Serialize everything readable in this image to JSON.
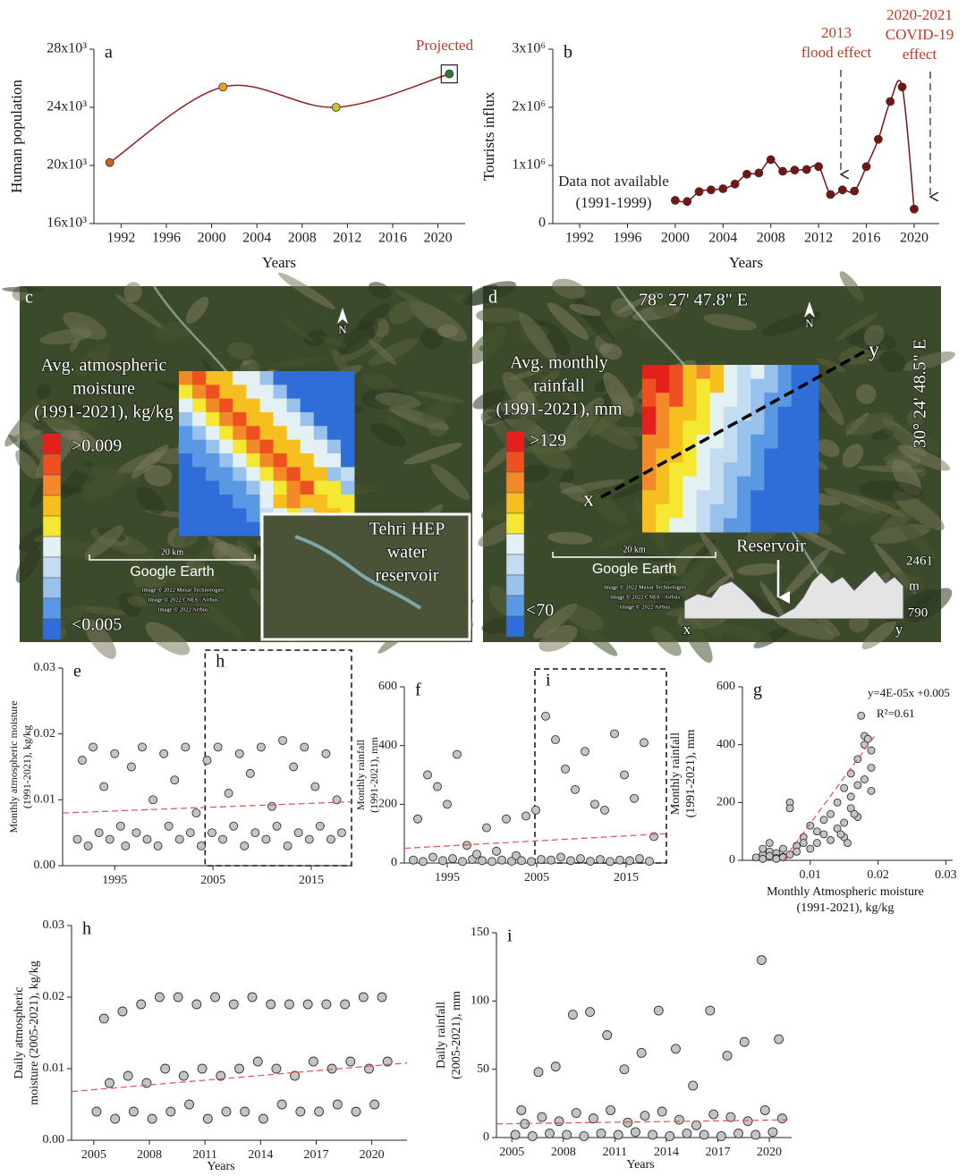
{
  "chart_data": [
    {
      "type": "line",
      "panel": "a",
      "ylabel": [
        "Human population"
      ],
      "xlabel": "Years",
      "smooth": true,
      "x": [
        1991,
        2001,
        2011,
        2021
      ],
      "series": [
        {
          "color": "#8b2323",
          "values": [
            20200,
            25400,
            24000,
            26300
          ],
          "point_colors": [
            "#c8641c",
            "#e8a21e",
            "#c6c72a",
            "#2e7d32"
          ]
        }
      ],
      "xlim": [
        1989.6,
        2022.4
      ],
      "ylim": [
        16000,
        28000
      ],
      "xticks": [
        1992,
        1996,
        2000,
        2004,
        2008,
        2012,
        2016,
        2020
      ],
      "yticks": [
        {
          "value": 16000,
          "label": "16x10³"
        },
        {
          "value": 20000,
          "label": "20x10³"
        },
        {
          "value": 24000,
          "label": "24x10³"
        },
        {
          "value": 28000,
          "label": "28x10³"
        }
      ],
      "annotations": [
        {
          "lines": [
            "Projected"
          ],
          "color": "#c0392b"
        }
      ]
    },
    {
      "type": "line",
      "panel": "b",
      "ylabel": [
        "Tourists influx"
      ],
      "xlabel": "Years",
      "smooth": true,
      "x": [
        2000,
        2001,
        2002,
        2003,
        2004,
        2005,
        2006,
        2007,
        2008,
        2009,
        2010,
        2011,
        2012,
        2013,
        2014,
        2015,
        2016,
        2017,
        2018,
        2019,
        2020
      ],
      "series": [
        {
          "color": "#7a1414",
          "values": [
            400000,
            380000,
            550000,
            580000,
            600000,
            680000,
            850000,
            870000,
            1100000,
            900000,
            920000,
            930000,
            980000,
            500000,
            580000,
            560000,
            980000,
            1450000,
            2100000,
            2350000,
            250000
          ]
        }
      ],
      "xlim": [
        1989.75,
        2022.1
      ],
      "ylim": [
        0,
        3000000
      ],
      "xticks": [
        1992,
        1996,
        2000,
        2004,
        2008,
        2012,
        2016,
        2020
      ],
      "yticks": [
        0,
        {
          "value": 1000000,
          "label": "1x10⁶"
        },
        {
          "value": 2000000,
          "label": "2x10⁶"
        },
        {
          "value": 3000000,
          "label": "3x10⁶"
        }
      ],
      "annotations": [
        {
          "lines": [
            "2013",
            "flood effect"
          ],
          "color": "#c0392b"
        },
        {
          "lines": [
            "2020-2021",
            "COVID-19",
            "effect"
          ],
          "color": "#c0392b"
        },
        {
          "lines": [
            "Data not available",
            "(1991-1999)"
          ],
          "color": "#222222"
        }
      ]
    },
    {
      "type": "scatter",
      "panel": "e",
      "ylabel": [
        "Monthly atmospheric moisture",
        "(1991-2021), kg/kg"
      ],
      "series": [
        {
          "color": "#c4c4c4",
          "x": [
            1991.2,
            1991.7,
            1992.3,
            1992.8,
            1993.4,
            1993.9,
            1994.5,
            1995.0,
            1995.6,
            1996.1,
            1996.7,
            1997.2,
            1997.8,
            1998.3,
            1998.9,
            1999.4,
            2000.0,
            2000.5,
            2001.1,
            2001.6,
            2002.2,
            2002.7,
            2003.3,
            2003.8,
            2004.4,
            2004.9,
            2005.5,
            2006.0,
            2006.6,
            2007.1,
            2007.7,
            2008.2,
            2008.8,
            2009.3,
            2009.9,
            2010.4,
            2011.0,
            2011.5,
            2012.1,
            2012.6,
            2013.2,
            2013.7,
            2014.3,
            2014.8,
            2015.4,
            2015.9,
            2016.5,
            2017.0,
            2017.6,
            2018.1
          ],
          "values": [
            0.004,
            0.016,
            0.003,
            0.018,
            0.005,
            0.012,
            0.004,
            0.017,
            0.006,
            0.003,
            0.015,
            0.005,
            0.018,
            0.004,
            0.01,
            0.003,
            0.017,
            0.006,
            0.013,
            0.004,
            0.018,
            0.005,
            0.008,
            0.003,
            0.016,
            0.005,
            0.018,
            0.004,
            0.011,
            0.006,
            0.017,
            0.003,
            0.014,
            0.005,
            0.018,
            0.004,
            0.009,
            0.006,
            0.019,
            0.003,
            0.015,
            0.005,
            0.018,
            0.004,
            0.012,
            0.006,
            0.017,
            0.004,
            0.01,
            0.005
          ]
        }
      ],
      "trendline": {
        "x": [
          1989.7,
          2019.1
        ],
        "values": [
          0.008,
          0.0097
        ],
        "color": "#e05050"
      },
      "highlight": {
        "label": "h",
        "range": [
          2004.2,
          2019.1
        ]
      },
      "xlim": [
        1989.7,
        2019.1
      ],
      "ylim": [
        0,
        0.03
      ],
      "xticks": [
        1995,
        2005,
        2015
      ],
      "yticks": [
        {
          "value": 0,
          "label": "0.00"
        },
        0.01,
        0.02,
        0.03
      ]
    },
    {
      "type": "scatter",
      "panel": "f",
      "ylabel": [
        "Monthly rainfall",
        "(1991-2021), mm"
      ],
      "series": [
        {
          "color": "#c4c4c4",
          "x": [
            1991.2,
            1991.7,
            1992.3,
            1992.8,
            1993.4,
            1993.9,
            1994.5,
            1995.0,
            1995.6,
            1996.1,
            1996.7,
            1997.2,
            1997.8,
            1998.3,
            1998.9,
            1999.4,
            2000.0,
            2000.5,
            2001.1,
            2001.6,
            2002.2,
            2002.7,
            2003.3,
            2003.8,
            2004.4,
            2004.9,
            2005.5,
            2006.0,
            2006.6,
            2007.1,
            2007.7,
            2008.2,
            2008.8,
            2009.3,
            2009.9,
            2010.4,
            2011.0,
            2011.5,
            2012.1,
            2012.6,
            2013.2,
            2013.7,
            2014.3,
            2014.8,
            2015.4,
            2015.9,
            2016.5,
            2017.0,
            2017.6,
            2018.1
          ],
          "values": [
            10,
            150,
            5,
            300,
            20,
            260,
            8,
            200,
            15,
            370,
            5,
            60,
            12,
            30,
            8,
            120,
            5,
            40,
            10,
            150,
            6,
            25,
            8,
            160,
            5,
            180,
            12,
            500,
            10,
            420,
            20,
            320,
            8,
            250,
            15,
            380,
            6,
            200,
            12,
            180,
            5,
            440,
            10,
            300,
            8,
            220,
            15,
            410,
            6,
            90
          ]
        }
      ],
      "trendline": {
        "x": [
          1990.2,
          2019.5
        ],
        "values": [
          50,
          100
        ],
        "color": "#e05050"
      },
      "highlight": {
        "label": "i",
        "range": [
          2004.8,
          2019.5
        ]
      },
      "xlim": [
        1990.2,
        2019.5
      ],
      "ylim": [
        0,
        600
      ],
      "xticks": [
        1995,
        2005,
        2015
      ],
      "yticks": [
        0,
        200,
        400,
        600
      ]
    },
    {
      "type": "scatter",
      "panel": "g",
      "ylabel": [
        "Monthly rainfall",
        "(1991-2021), mm"
      ],
      "xlabel": [
        "Monthly Atmospheric moisture",
        "(1991-2021), kg/kg"
      ],
      "series": [
        {
          "color": "#c4c4c4",
          "x": [
            0.002,
            0.003,
            0.003,
            0.004,
            0.004,
            0.005,
            0.005,
            0.006,
            0.006,
            0.007,
            0.007,
            0.008,
            0.008,
            0.009,
            0.009,
            0.01,
            0.01,
            0.011,
            0.011,
            0.012,
            0.012,
            0.013,
            0.013,
            0.014,
            0.014,
            0.015,
            0.015,
            0.015,
            0.016,
            0.016,
            0.016,
            0.017,
            0.017,
            0.017,
            0.018,
            0.018,
            0.018,
            0.019,
            0.019,
            0.019,
            0.004,
            0.006,
            0.007,
            0.005,
            0.003,
            0.0175,
            0.0185,
            0.0155,
            0.0165,
            0.0145
          ],
          "values": [
            10,
            20,
            5,
            30,
            15,
            25,
            8,
            40,
            12,
            200,
            20,
            50,
            30,
            80,
            60,
            120,
            40,
            100,
            60,
            90,
            140,
            70,
            160,
            110,
            200,
            130,
            250,
            80,
            180,
            300,
            220,
            260,
            150,
            350,
            280,
            400,
            430,
            240,
            380,
            320,
            60,
            10,
            180,
            5,
            40,
            500,
            420,
            60,
            160,
            90
          ]
        }
      ],
      "trendline": {
        "x": [
          0.006,
          0.0195
        ],
        "values": [
          0,
          430
        ],
        "color": "#e05050"
      },
      "xlim": [
        0,
        0.031
      ],
      "ylim": [
        0,
        600
      ],
      "xticks": [
        0.01,
        0.02,
        0.03
      ],
      "yticks": [
        0,
        200,
        400,
        600
      ],
      "annotations": [
        {
          "lines": [
            "y=4E-05x +0.005"
          ],
          "color": "#111111"
        },
        {
          "lines": [
            "R²=0.61"
          ],
          "color": "#111111"
        }
      ]
    },
    {
      "type": "scatter",
      "panel": "h",
      "ylabel": [
        "Daily atmospheric",
        "moisture (2005-2021), kg/kg"
      ],
      "xlabel": "Years",
      "series": [
        {
          "color": "#c4c4c4",
          "x": [
            2005.15,
            2005.55,
            2005.85,
            2006.15,
            2006.55,
            2006.85,
            2007.15,
            2007.55,
            2007.85,
            2008.15,
            2008.55,
            2008.85,
            2009.15,
            2009.55,
            2009.85,
            2010.15,
            2010.55,
            2010.85,
            2011.15,
            2011.55,
            2011.85,
            2012.15,
            2012.55,
            2012.85,
            2013.15,
            2013.55,
            2013.85,
            2014.15,
            2014.55,
            2014.85,
            2015.15,
            2015.55,
            2015.85,
            2016.15,
            2016.55,
            2016.85,
            2017.15,
            2017.55,
            2017.85,
            2018.15,
            2018.55,
            2018.85,
            2019.15,
            2019.55,
            2019.85,
            2020.15,
            2020.55,
            2020.85
          ],
          "values": [
            0.004,
            0.017,
            0.008,
            0.003,
            0.018,
            0.009,
            0.004,
            0.019,
            0.008,
            0.003,
            0.02,
            0.01,
            0.004,
            0.02,
            0.009,
            0.005,
            0.019,
            0.01,
            0.003,
            0.02,
            0.009,
            0.004,
            0.019,
            0.01,
            0.004,
            0.02,
            0.011,
            0.003,
            0.019,
            0.01,
            0.005,
            0.019,
            0.009,
            0.004,
            0.019,
            0.011,
            0.004,
            0.019,
            0.01,
            0.005,
            0.019,
            0.011,
            0.004,
            0.02,
            0.01,
            0.005,
            0.02,
            0.011
          ]
        }
      ],
      "trendline": {
        "x": [
          2003.8,
          2021.9
        ],
        "values": [
          0.0068,
          0.0108
        ],
        "color": "#e05050"
      },
      "xlim": [
        2003.8,
        2021.9
      ],
      "ylim": [
        0,
        0.03
      ],
      "xticks": [
        2005,
        2008,
        2011,
        2014,
        2017,
        2020
      ],
      "yticks": [
        {
          "value": 0,
          "label": "0.00"
        },
        0.01,
        0.02,
        0.03
      ]
    },
    {
      "type": "scatter",
      "panel": "i",
      "ylabel": [
        "Daily rainfall",
        "(2005-2021), mm"
      ],
      "xlabel": "Years",
      "series": [
        {
          "color": "#c4c4c4",
          "x": [
            2005.2,
            2005.55,
            2005.75,
            2006.2,
            2006.55,
            2006.75,
            2007.2,
            2007.55,
            2007.75,
            2008.2,
            2008.55,
            2008.75,
            2009.2,
            2009.55,
            2009.75,
            2010.2,
            2010.55,
            2010.75,
            2011.2,
            2011.55,
            2011.75,
            2012.2,
            2012.55,
            2012.75,
            2013.2,
            2013.55,
            2013.75,
            2014.2,
            2014.55,
            2014.75,
            2015.2,
            2015.55,
            2015.75,
            2016.2,
            2016.55,
            2016.75,
            2017.2,
            2017.55,
            2017.75,
            2018.2,
            2018.55,
            2018.75,
            2019.2,
            2019.55,
            2019.75,
            2020.2,
            2020.55,
            2020.75
          ],
          "values": [
            2,
            20,
            10,
            1,
            48,
            15,
            3,
            52,
            12,
            2,
            90,
            18,
            1,
            92,
            14,
            3,
            75,
            20,
            2,
            50,
            11,
            4,
            62,
            16,
            2,
            93,
            19,
            1,
            65,
            13,
            3,
            38,
            9,
            2,
            93,
            17,
            1,
            60,
            15,
            3,
            70,
            12,
            2,
            130,
            20,
            4,
            72,
            14
          ]
        }
      ],
      "trendline": {
        "x": [
          2004.1,
          2021.3
        ],
        "values": [
          10,
          13
        ],
        "color": "#e05050"
      },
      "xlim": [
        2004.1,
        2021.3
      ],
      "ylim": [
        0,
        150
      ],
      "xticks": [
        2005,
        2008,
        2011,
        2014,
        2017,
        2020
      ],
      "yticks": [
        0,
        50,
        100,
        150
      ]
    }
  ],
  "maps": [
    {
      "panel": "c",
      "north": "N",
      "legend_title": [
        "Avg. atmospheric",
        "moisture",
        "(1991-2021), kg/kg"
      ],
      "legend_max": ">0.009",
      "legend_min": "<0.005",
      "scale": "20 km",
      "source": "Google Earth",
      "credits": [
        "Image © 2022 Maxar Technologies",
        "Image © 2022 CNES / Airbus",
        "Image © 2022 Airbus"
      ],
      "inset_label": [
        "Tehri HEP",
        "water",
        "reservoir"
      ]
    },
    {
      "panel": "d",
      "north": "N",
      "longitude": "78° 27' 47.8\" E",
      "latitude": "30° 24' 48.5\" E",
      "legend_title": [
        "Avg. monthly",
        "rainfall",
        "(1991-2021), mm"
      ],
      "legend_max": ">129",
      "legend_min": "<70",
      "scale": "20 km",
      "source": "Google Earth",
      "credits": [
        "Image © 2022 Maxar Technologies",
        "Image © 2022 CNES / Airbus",
        "Image © 2022 Airbus"
      ],
      "transect_start": "x",
      "transect_end": "y",
      "profile_label": "Reservoir",
      "elevation_max": 2461,
      "elevation_unit": "m",
      "elevation_min": 790,
      "profile_start": "x",
      "profile_end": "y"
    }
  ]
}
